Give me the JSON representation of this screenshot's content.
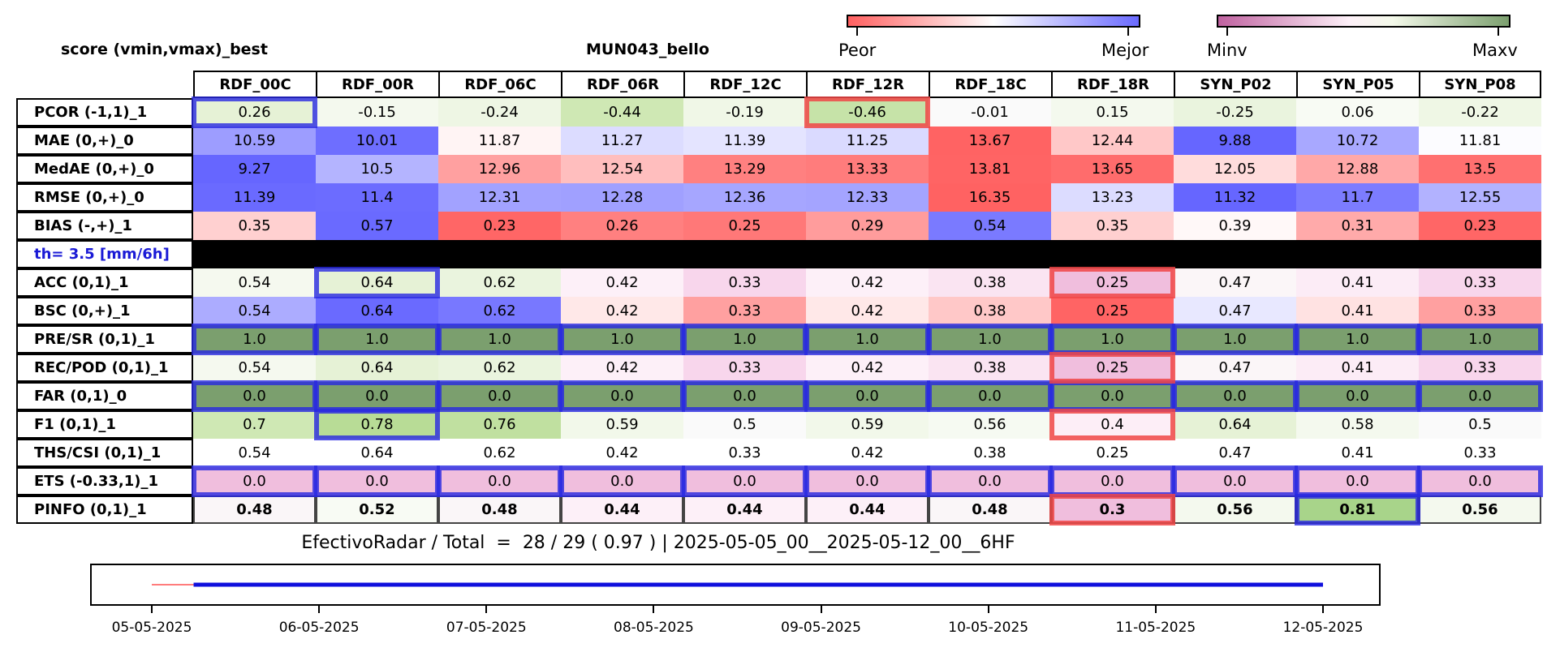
{
  "chart_data": {
    "type": "table",
    "title_left": "score (vmin,vmax)_best",
    "title_center": "MUN043_bello",
    "colorbar_score": {
      "min_label": "Peor",
      "max_label": "Mejor",
      "colors": [
        "#ff6060",
        "#ffffff",
        "#6a6aff"
      ]
    },
    "colorbar_value": {
      "min_label": "Minv",
      "max_label": "Maxv",
      "colors": [
        "#c062a0",
        "#f8f3f0",
        "#7b9f6e"
      ]
    },
    "columns": [
      "RDF_00C",
      "RDF_00R",
      "RDF_06C",
      "RDF_06R",
      "RDF_12C",
      "RDF_12R",
      "RDF_18C",
      "RDF_18R",
      "SYN_P02",
      "SYN_P05",
      "SYN_P08"
    ],
    "rows": [
      {
        "label": "PCOR (-1,1)_1",
        "values": [
          "0.26",
          "-0.15",
          "-0.24",
          "-0.44",
          "-0.19",
          "-0.46",
          "-0.01",
          "0.15",
          "-0.25",
          "0.06",
          "-0.22"
        ],
        "colors": [
          "#e6f2d6",
          "#f4f9ee",
          "#eef6e4",
          "#cfe8b4",
          "#f0f7e7",
          "#c6e3a8",
          "#fafafa",
          "#f4f9ee",
          "#eaf4de",
          "#f8fbf4",
          "#eff7e5"
        ]
      },
      {
        "label": "MAE (0,+)_0",
        "values": [
          "10.59",
          "10.01",
          "11.87",
          "11.27",
          "11.39",
          "11.25",
          "13.67",
          "12.44",
          "9.88",
          "10.72",
          "11.81"
        ],
        "colors": [
          "#9d9dff",
          "#6e6eff",
          "#fff4f4",
          "#dcdcff",
          "#e4e4ff",
          "#dadaff",
          "#ff6363",
          "#ffc8c8",
          "#6666ff",
          "#a8a8ff",
          "#fcfcff"
        ]
      },
      {
        "label": "MedAE (0,+)_0",
        "values": [
          "9.27",
          "10.5",
          "12.96",
          "12.54",
          "13.29",
          "13.33",
          "13.81",
          "13.65",
          "12.05",
          "12.88",
          "13.5"
        ],
        "colors": [
          "#6666ff",
          "#b4b4ff",
          "#ffa0a0",
          "#ffbebe",
          "#ff8080",
          "#ff7c7c",
          "#ff6464",
          "#ff6c6c",
          "#ffdcdc",
          "#ffa8a8",
          "#ff7070"
        ]
      },
      {
        "label": "RMSE (0,+)_0",
        "values": [
          "11.39",
          "11.4",
          "12.31",
          "12.28",
          "12.36",
          "12.33",
          "16.35",
          "13.23",
          "11.32",
          "11.7",
          "12.55"
        ],
        "colors": [
          "#6a6aff",
          "#6c6cff",
          "#a2a2ff",
          "#a0a0ff",
          "#a6a6ff",
          "#a4a4ff",
          "#ff6262",
          "#dcdcff",
          "#6666ff",
          "#7c7cff",
          "#b2b2ff"
        ]
      },
      {
        "label": "BIAS (-,+)_1",
        "values": [
          "0.35",
          "0.57",
          "0.23",
          "0.26",
          "0.25",
          "0.29",
          "0.54",
          "0.35",
          "0.39",
          "0.31",
          "0.23"
        ],
        "colors": [
          "#ffd0d0",
          "#6a6aff",
          "#ff6666",
          "#ff8080",
          "#ff7878",
          "#ff9c9c",
          "#7a7aff",
          "#ffd0d0",
          "#fff8f8",
          "#ffaaaa",
          "#ff6666"
        ]
      },
      {
        "label": "th= 3.5 [mm/6h]",
        "separator": true
      },
      {
        "label": "ACC (0,1)_1",
        "values": [
          "0.54",
          "0.64",
          "0.62",
          "0.42",
          "0.33",
          "0.42",
          "0.38",
          "0.25",
          "0.47",
          "0.41",
          "0.33"
        ],
        "colors": [
          "#f5f9ef",
          "#e6f2d6",
          "#eaf4de",
          "#fdf0f8",
          "#f8d6ec",
          "#fdf0f8",
          "#fae4f2",
          "#f0bedd",
          "#fbf6f8",
          "#fcecf6",
          "#f8d6ec"
        ]
      },
      {
        "label": "BSC (0,+)_1",
        "values": [
          "0.54",
          "0.64",
          "0.62",
          "0.42",
          "0.33",
          "0.42",
          "0.38",
          "0.25",
          "0.47",
          "0.41",
          "0.33"
        ],
        "colors": [
          "#acacff",
          "#6a6aff",
          "#7878ff",
          "#ffe8e8",
          "#ffa0a0",
          "#ffe8e8",
          "#ffc8c8",
          "#ff6464",
          "#e8e8ff",
          "#ffe2e2",
          "#ffa0a0"
        ]
      },
      {
        "label": "PRE/SR (0,1)_1",
        "values": [
          "1.0",
          "1.0",
          "1.0",
          "1.0",
          "1.0",
          "1.0",
          "1.0",
          "1.0",
          "1.0",
          "1.0",
          "1.0"
        ],
        "colors": [
          "#7b9f6e",
          "#7b9f6e",
          "#7b9f6e",
          "#7b9f6e",
          "#7b9f6e",
          "#7b9f6e",
          "#7b9f6e",
          "#7b9f6e",
          "#7b9f6e",
          "#7b9f6e",
          "#7b9f6e"
        ]
      },
      {
        "label": "REC/POD (0,1)_1",
        "values": [
          "0.54",
          "0.64",
          "0.62",
          "0.42",
          "0.33",
          "0.42",
          "0.38",
          "0.25",
          "0.47",
          "0.41",
          "0.33"
        ],
        "colors": [
          "#f5f9ef",
          "#e6f2d6",
          "#eaf4de",
          "#fdf0f8",
          "#f8d6ec",
          "#fdf0f8",
          "#fae4f2",
          "#f0bedd",
          "#fbf6f8",
          "#fcecf6",
          "#f8d6ec"
        ]
      },
      {
        "label": "FAR (0,1)_0",
        "values": [
          "0.0",
          "0.0",
          "0.0",
          "0.0",
          "0.0",
          "0.0",
          "0.0",
          "0.0",
          "0.0",
          "0.0",
          "0.0"
        ],
        "colors": [
          "#7b9f6e",
          "#7b9f6e",
          "#7b9f6e",
          "#7b9f6e",
          "#7b9f6e",
          "#7b9f6e",
          "#7b9f6e",
          "#7b9f6e",
          "#7b9f6e",
          "#7b9f6e",
          "#7b9f6e"
        ]
      },
      {
        "label": "F1 (0,1)_1",
        "values": [
          "0.7",
          "0.78",
          "0.76",
          "0.59",
          "0.5",
          "0.59",
          "0.56",
          "0.4",
          "0.64",
          "0.58",
          "0.5"
        ],
        "colors": [
          "#cfe8b4",
          "#b8dc96",
          "#c0e0a0",
          "#f2f8ea",
          "#fafafa",
          "#f2f8ea",
          "#f6faf2",
          "#fdeef7",
          "#e6f2d6",
          "#f4f9ee",
          "#fafafa"
        ]
      },
      {
        "label": "THS/CSI (0,1)_1",
        "values": [
          "0.54",
          "0.64",
          "0.62",
          "0.42",
          "0.33",
          "0.42",
          "0.38",
          "0.25",
          "0.47",
          "0.41",
          "0.33"
        ],
        "colors": [
          "#ffffff",
          "#ffffff",
          "#ffffff",
          "#ffffff",
          "#ffffff",
          "#ffffff",
          "#ffffff",
          "#ffffff",
          "#ffffff",
          "#ffffff",
          "#ffffff"
        ]
      },
      {
        "label": "ETS (-0.33,1)_1",
        "values": [
          "0.0",
          "0.0",
          "0.0",
          "0.0",
          "0.0",
          "0.0",
          "0.0",
          "0.0",
          "0.0",
          "0.0",
          "0.0"
        ],
        "colors": [
          "#f0bedd",
          "#f0bedd",
          "#f0bedd",
          "#f0bedd",
          "#f0bedd",
          "#f0bedd",
          "#f0bedd",
          "#f0bedd",
          "#f0bedd",
          "#f0bedd",
          "#f0bedd"
        ]
      },
      {
        "label": "PINFO (0,1)_1",
        "bold": true,
        "values": [
          "0.48",
          "0.52",
          "0.48",
          "0.44",
          "0.44",
          "0.44",
          "0.48",
          "0.3",
          "0.56",
          "0.81",
          "0.56"
        ],
        "colors": [
          "#faf6f8",
          "#f8fbf4",
          "#faf6f8",
          "#fdf0f8",
          "#fdf0f8",
          "#fdf0f8",
          "#faf6f8",
          "#f0bedd",
          "#f4f9ee",
          "#a8d48a",
          "#f4f9ee"
        ]
      }
    ],
    "highlights_best": [
      [
        0,
        0
      ],
      [
        6,
        1
      ],
      [
        8,
        0
      ],
      [
        8,
        1
      ],
      [
        8,
        2
      ],
      [
        8,
        3
      ],
      [
        8,
        4
      ],
      [
        8,
        5
      ],
      [
        8,
        6
      ],
      [
        8,
        7
      ],
      [
        8,
        8
      ],
      [
        8,
        9
      ],
      [
        8,
        10
      ],
      [
        10,
        0
      ],
      [
        10,
        1
      ],
      [
        10,
        2
      ],
      [
        10,
        3
      ],
      [
        10,
        4
      ],
      [
        10,
        5
      ],
      [
        10,
        6
      ],
      [
        10,
        7
      ],
      [
        10,
        8
      ],
      [
        10,
        9
      ],
      [
        10,
        10
      ],
      [
        11,
        1
      ],
      [
        13,
        0
      ],
      [
        13,
        1
      ],
      [
        13,
        2
      ],
      [
        13,
        3
      ],
      [
        13,
        4
      ],
      [
        13,
        5
      ],
      [
        13,
        6
      ],
      [
        13,
        7
      ],
      [
        13,
        8
      ],
      [
        13,
        9
      ],
      [
        13,
        10
      ],
      [
        14,
        9
      ]
    ],
    "highlights_worst": [
      [
        0,
        5
      ],
      [
        6,
        7
      ],
      [
        9,
        7
      ],
      [
        11,
        7
      ],
      [
        14,
        7
      ]
    ],
    "separator_color": "#000000",
    "separator_label_color": "#1a1ad6",
    "summary": "EfectivoRadar / Total  =  28 / 29 ( 0.97 ) | 2025-05-05_00__2025-05-12_00__6HF",
    "timeline": {
      "x_labels": [
        "05-05-2025",
        "06-05-2025",
        "07-05-2025",
        "08-05-2025",
        "09-05-2025",
        "10-05-2025",
        "11-05-2025",
        "12-05-2025"
      ],
      "segments": [
        {
          "from": 0,
          "to": 0.25,
          "color": "#ff5050"
        },
        {
          "from": 0.25,
          "to": 7,
          "color": "#1010dd"
        }
      ]
    }
  }
}
